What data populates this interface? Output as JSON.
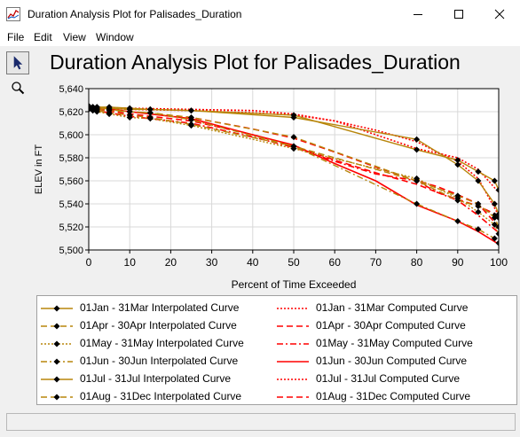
{
  "window": {
    "title": "Duration Analysis Plot for Palisades_Duration"
  },
  "menu": {
    "items": [
      "File",
      "Edit",
      "View",
      "Window"
    ]
  },
  "toolbar": {
    "tools": [
      "select-pointer-icon",
      "zoom-magnifier-icon"
    ]
  },
  "plot": {
    "title": "Duration Analysis Plot for Palisades_Duration"
  },
  "chart_data": {
    "type": "line",
    "title": "Duration Analysis Plot for Palisades_Duration",
    "xlabel": "Percent of Time Exceeded",
    "ylabel": "ELEV in FT",
    "xlim": [
      0,
      100
    ],
    "ylim": [
      5500,
      5640
    ],
    "xticks": [
      0,
      10,
      20,
      30,
      40,
      50,
      60,
      70,
      80,
      90,
      100
    ],
    "yticks": [
      5500,
      5520,
      5540,
      5560,
      5580,
      5600,
      5620,
      5640
    ],
    "ytick_labels": [
      "5,500",
      "5,520",
      "5,540",
      "5,560",
      "5,580",
      "5,600",
      "5,620",
      "5,640"
    ],
    "grid": true,
    "legend_position": "bottom",
    "colors": {
      "interpolated": "#b8860b",
      "computed": "#ff0000",
      "marker": "#000000",
      "gridline": "#d8d8d8"
    },
    "series": [
      {
        "name": "01Jan - 31Mar Interpolated Curve",
        "kind": "interpolated",
        "dash": "solid",
        "x": [
          0,
          1,
          2,
          5,
          10,
          15,
          25,
          50,
          80,
          90,
          95,
          99,
          100
        ],
        "y": [
          5624,
          5624,
          5624,
          5624,
          5623,
          5622,
          5621,
          5615,
          5596,
          5574,
          5560,
          5540,
          5531
        ]
      },
      {
        "name": "01Apr - 30Apr Interpolated Curve",
        "kind": "interpolated",
        "dash": "dash",
        "x": [
          0,
          1,
          2,
          5,
          10,
          15,
          25,
          50,
          80,
          90,
          95,
          99,
          100
        ],
        "y": [
          5623,
          5622,
          5621,
          5619,
          5617,
          5615,
          5609,
          5590,
          5560,
          5543,
          5538,
          5530,
          5528
        ]
      },
      {
        "name": "01May - 31May Interpolated Curve",
        "kind": "interpolated",
        "dash": "dot",
        "x": [
          0,
          1,
          2,
          5,
          10,
          15,
          25,
          50,
          80,
          90,
          95,
          99,
          100
        ],
        "y": [
          5622,
          5621,
          5620,
          5618,
          5615,
          5614,
          5608,
          5588,
          5562,
          5545,
          5533,
          5522,
          5514
        ]
      },
      {
        "name": "01Jun - 30Jun Interpolated Curve",
        "kind": "interpolated",
        "dash": "dashdot",
        "x": [
          0,
          1,
          2,
          5,
          10,
          15,
          25,
          50,
          80,
          90,
          95,
          99,
          100
        ],
        "y": [
          5625,
          5624,
          5624,
          5622,
          5620,
          5619,
          5613,
          5590,
          5540,
          5525,
          5518,
          5510,
          5506
        ]
      },
      {
        "name": "01Jul - 31Jul Interpolated Curve",
        "kind": "interpolated",
        "dash": "solid",
        "x": [
          0,
          1,
          2,
          5,
          10,
          15,
          25,
          50,
          80,
          90,
          95,
          99,
          100
        ],
        "y": [
          5624,
          5624,
          5623,
          5623,
          5622,
          5622,
          5621,
          5617,
          5587,
          5578,
          5568,
          5560,
          5552
        ]
      },
      {
        "name": "01Aug - 31Dec Interpolated Curve",
        "kind": "interpolated",
        "dash": "dash",
        "x": [
          0,
          1,
          2,
          5,
          10,
          15,
          25,
          50,
          80,
          90,
          95,
          99,
          100
        ],
        "y": [
          5623,
          5623,
          5622,
          5621,
          5620,
          5619,
          5615,
          5598,
          5560,
          5547,
          5540,
          5528,
          5520
        ]
      },
      {
        "name": "01Jan - 31Mar Computed Curve",
        "kind": "computed",
        "dash": "dot",
        "x": [
          0,
          10,
          25,
          40,
          50,
          60,
          70,
          80,
          85,
          90,
          95,
          100
        ],
        "y": [
          5624,
          5623,
          5622,
          5621,
          5618,
          5612,
          5604,
          5594,
          5585,
          5577,
          5562,
          5530
        ]
      },
      {
        "name": "01Apr - 30Apr Computed Curve",
        "kind": "computed",
        "dash": "dash",
        "x": [
          0,
          10,
          25,
          40,
          50,
          60,
          70,
          80,
          85,
          90,
          95,
          100
        ],
        "y": [
          5623,
          5618,
          5612,
          5600,
          5590,
          5578,
          5567,
          5557,
          5550,
          5544,
          5538,
          5530
        ]
      },
      {
        "name": "01May - 31May Computed Curve",
        "kind": "computed",
        "dash": "dashdot",
        "x": [
          0,
          10,
          25,
          40,
          50,
          60,
          70,
          80,
          85,
          90,
          95,
          100
        ],
        "y": [
          5622,
          5616,
          5610,
          5598,
          5589,
          5577,
          5566,
          5560,
          5550,
          5543,
          5530,
          5515
        ]
      },
      {
        "name": "01Jun - 30Jun Computed Curve",
        "kind": "computed",
        "dash": "solid",
        "x": [
          0,
          10,
          25,
          40,
          50,
          60,
          70,
          80,
          85,
          90,
          95,
          100
        ],
        "y": [
          5625,
          5620,
          5614,
          5600,
          5591,
          5575,
          5560,
          5539,
          5532,
          5525,
          5516,
          5505
        ]
      },
      {
        "name": "01Jul - 31Jul Computed Curve",
        "kind": "computed",
        "dash": "dot",
        "x": [
          0,
          10,
          25,
          40,
          50,
          60,
          70,
          80,
          85,
          90,
          95,
          100
        ],
        "y": [
          5624,
          5622,
          5621,
          5619,
          5617,
          5612,
          5600,
          5588,
          5584,
          5580,
          5570,
          5550
        ]
      },
      {
        "name": "01Aug - 31Dec Computed Curve",
        "kind": "computed",
        "dash": "dash",
        "x": [
          0,
          10,
          25,
          40,
          50,
          60,
          70,
          80,
          85,
          90,
          95,
          100
        ],
        "y": [
          5623,
          5620,
          5615,
          5605,
          5597,
          5585,
          5572,
          5560,
          5555,
          5548,
          5540,
          5520
        ]
      }
    ]
  }
}
